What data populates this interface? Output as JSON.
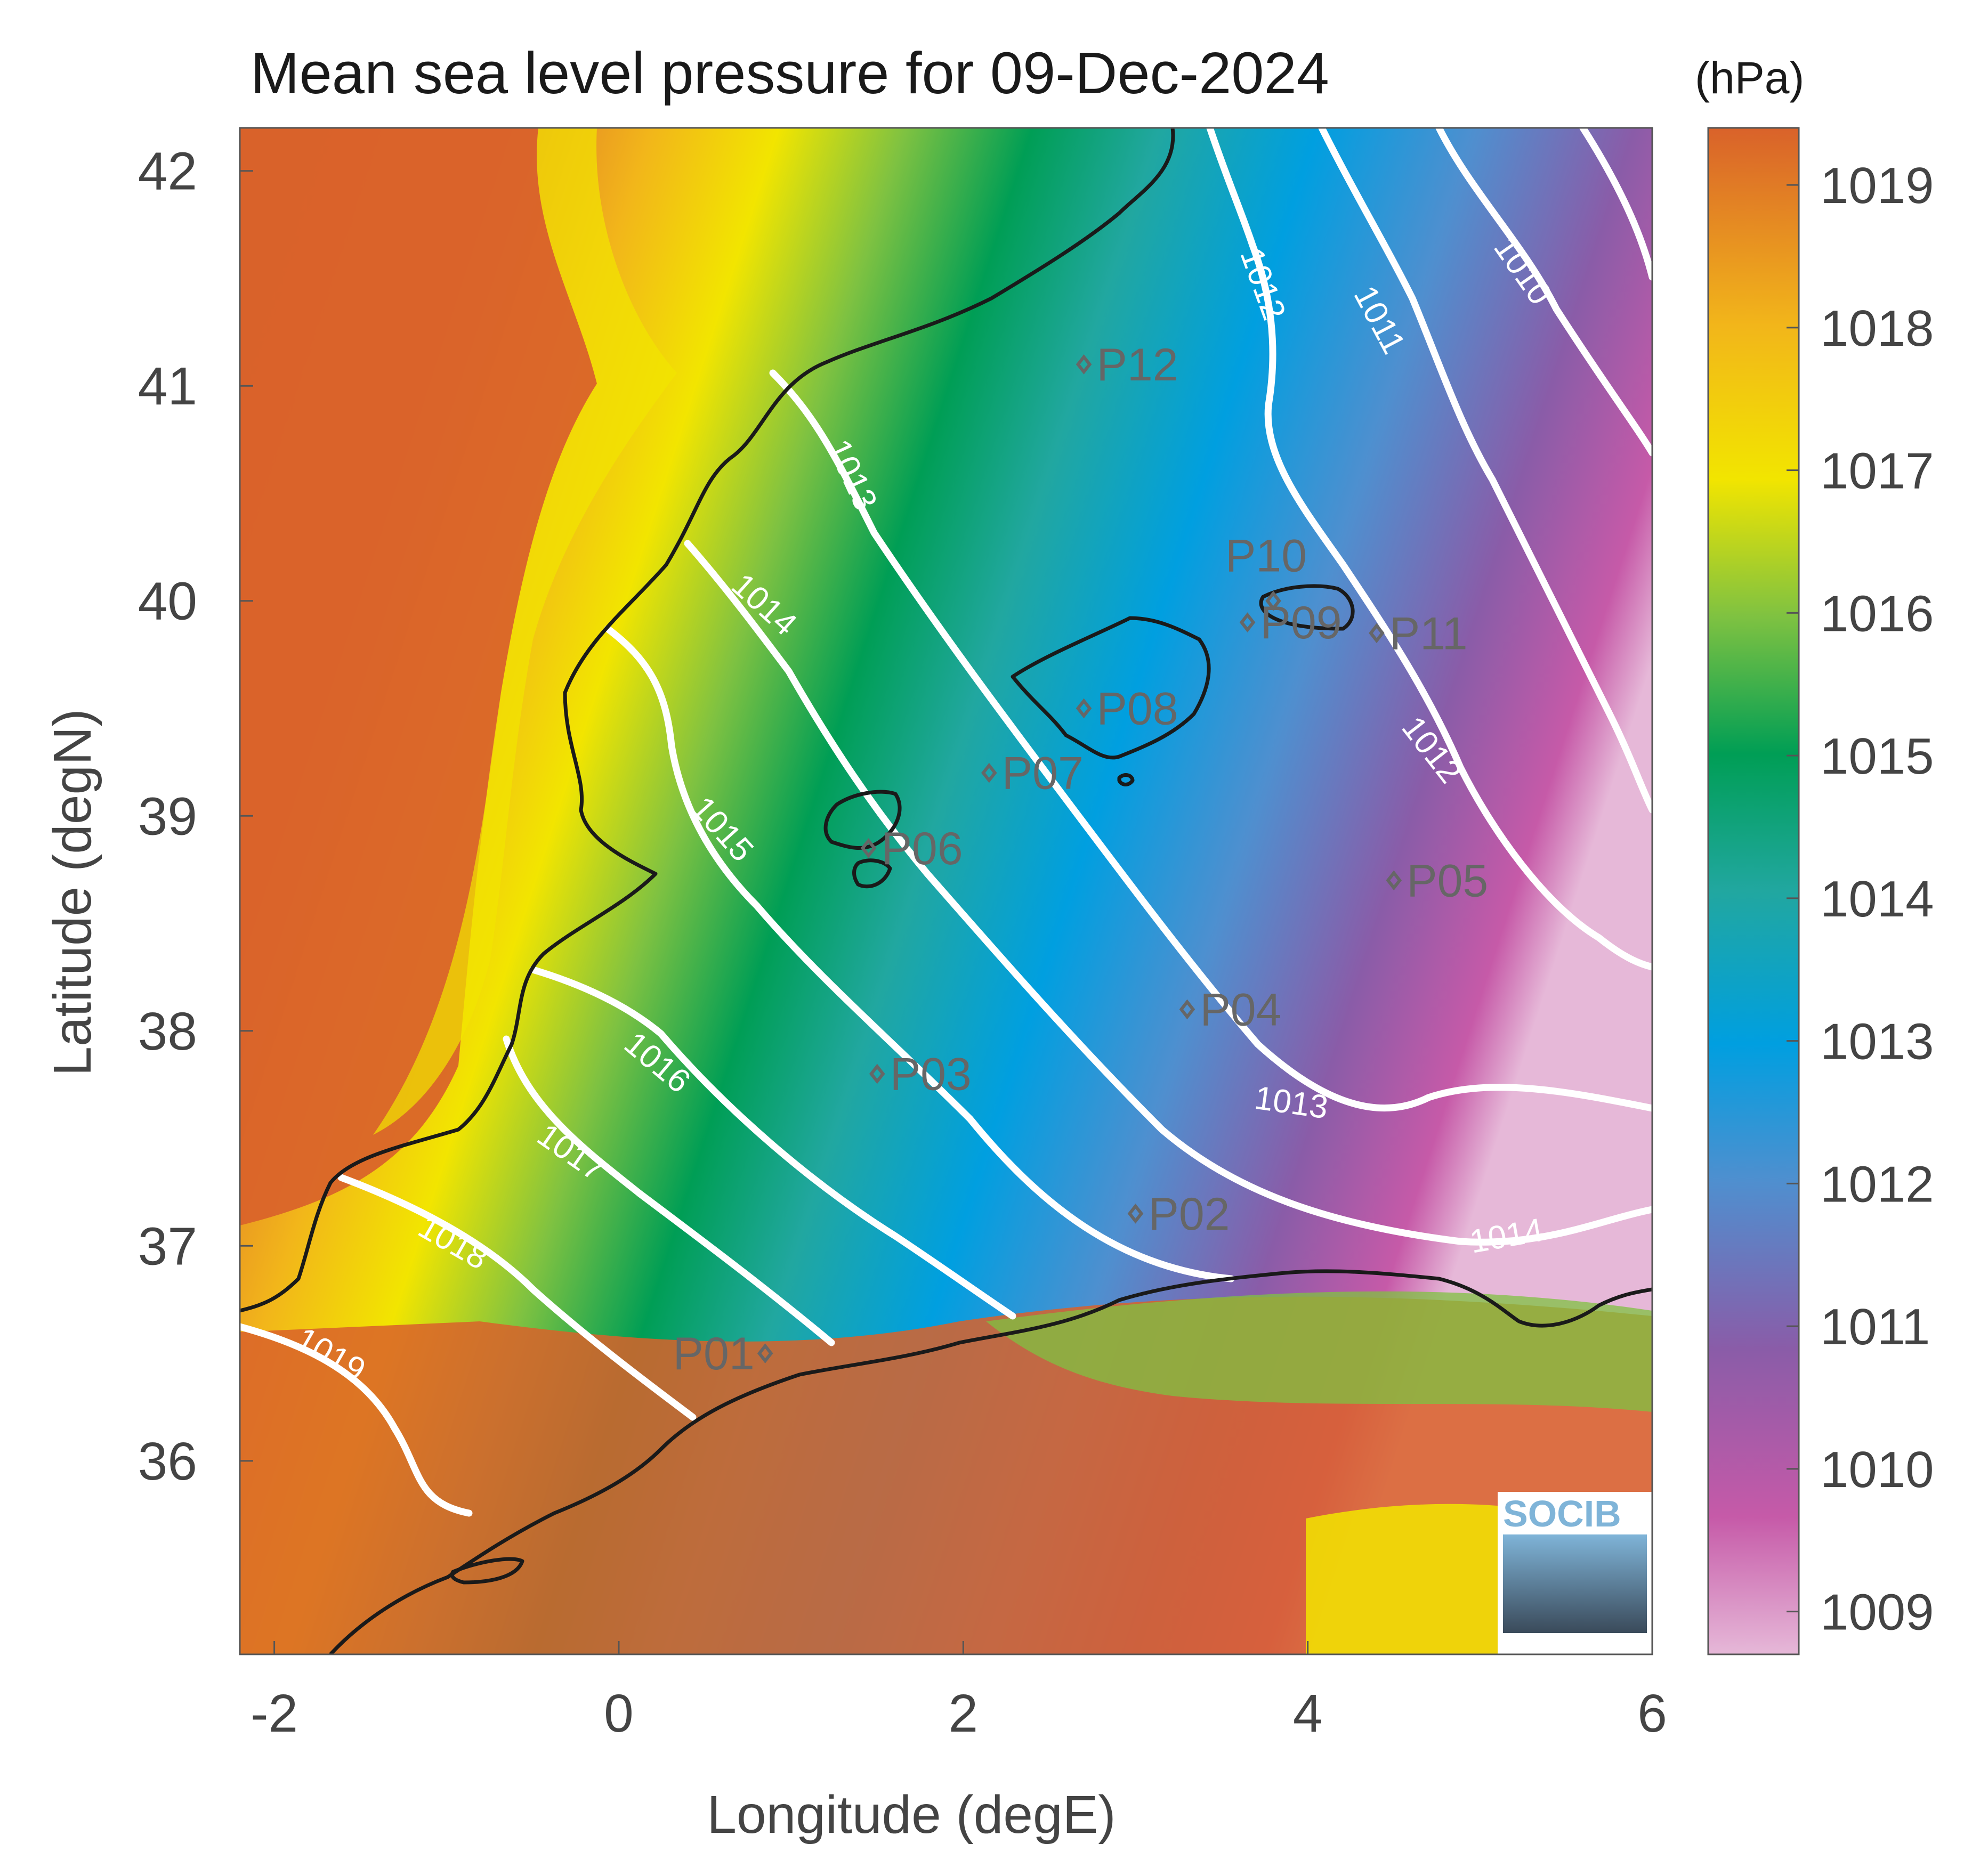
{
  "title": "Mean sea level pressure for 09-Dec-2024",
  "colorbar": {
    "unit": "(hPa)",
    "min": 1008.7,
    "max": 1019.4,
    "ticks": [
      "1009",
      "1010",
      "1011",
      "1012",
      "1013",
      "1014",
      "1015",
      "1016",
      "1017",
      "1018",
      "1019"
    ],
    "colormap": [
      "#e6b8d8",
      "#c65aa8",
      "#8a5ca8",
      "#4f8fcf",
      "#009fe0",
      "#21a7a0",
      "#009e55",
      "#7fc241",
      "#f2e500",
      "#f2b61a",
      "#d9622a"
    ]
  },
  "axes": {
    "xlabel": "Longitude (degE)",
    "ylabel": "Latitude (degN)",
    "xlim": [
      -2.2,
      6.0
    ],
    "ylim": [
      35.1,
      42.2
    ],
    "xticks": [
      "-2",
      "0",
      "2",
      "4",
      "6"
    ],
    "yticks": [
      "36",
      "37",
      "38",
      "39",
      "40",
      "41",
      "42"
    ]
  },
  "chart_data": {
    "type": "heatmap",
    "title": "Mean sea level pressure for 09-Dec-2024",
    "xlabel": "Longitude (degE)",
    "ylabel": "Latitude (degN)",
    "xlim": [
      -2.2,
      6.0
    ],
    "ylim": [
      35.1,
      42.2
    ],
    "value_range": [
      1008.7,
      1019.4
    ],
    "unit": "hPa",
    "contour_levels": [
      "1010",
      "1011",
      "1012",
      "1013",
      "1014",
      "1015",
      "1016",
      "1017",
      "1018",
      "1019"
    ],
    "stations": [
      {
        "name": "P01",
        "lon": 0.85,
        "lat": 36.5
      },
      {
        "name": "P02",
        "lon": 3.0,
        "lat": 37.15
      },
      {
        "name": "P03",
        "lon": 1.5,
        "lat": 37.8
      },
      {
        "name": "P04",
        "lon": 3.3,
        "lat": 38.1
      },
      {
        "name": "P05",
        "lon": 4.5,
        "lat": 38.7
      },
      {
        "name": "P06",
        "lon": 1.45,
        "lat": 38.85
      },
      {
        "name": "P07",
        "lon": 2.15,
        "lat": 39.2
      },
      {
        "name": "P08",
        "lon": 2.7,
        "lat": 39.5
      },
      {
        "name": "P09",
        "lon": 3.65,
        "lat": 39.9
      },
      {
        "name": "P10",
        "lon": 3.8,
        "lat": 40.0
      },
      {
        "name": "P11",
        "lon": 4.4,
        "lat": 39.85
      },
      {
        "name": "P12",
        "lon": 2.7,
        "lat": 41.1
      }
    ]
  },
  "logo": {
    "text": "SOCIB"
  }
}
